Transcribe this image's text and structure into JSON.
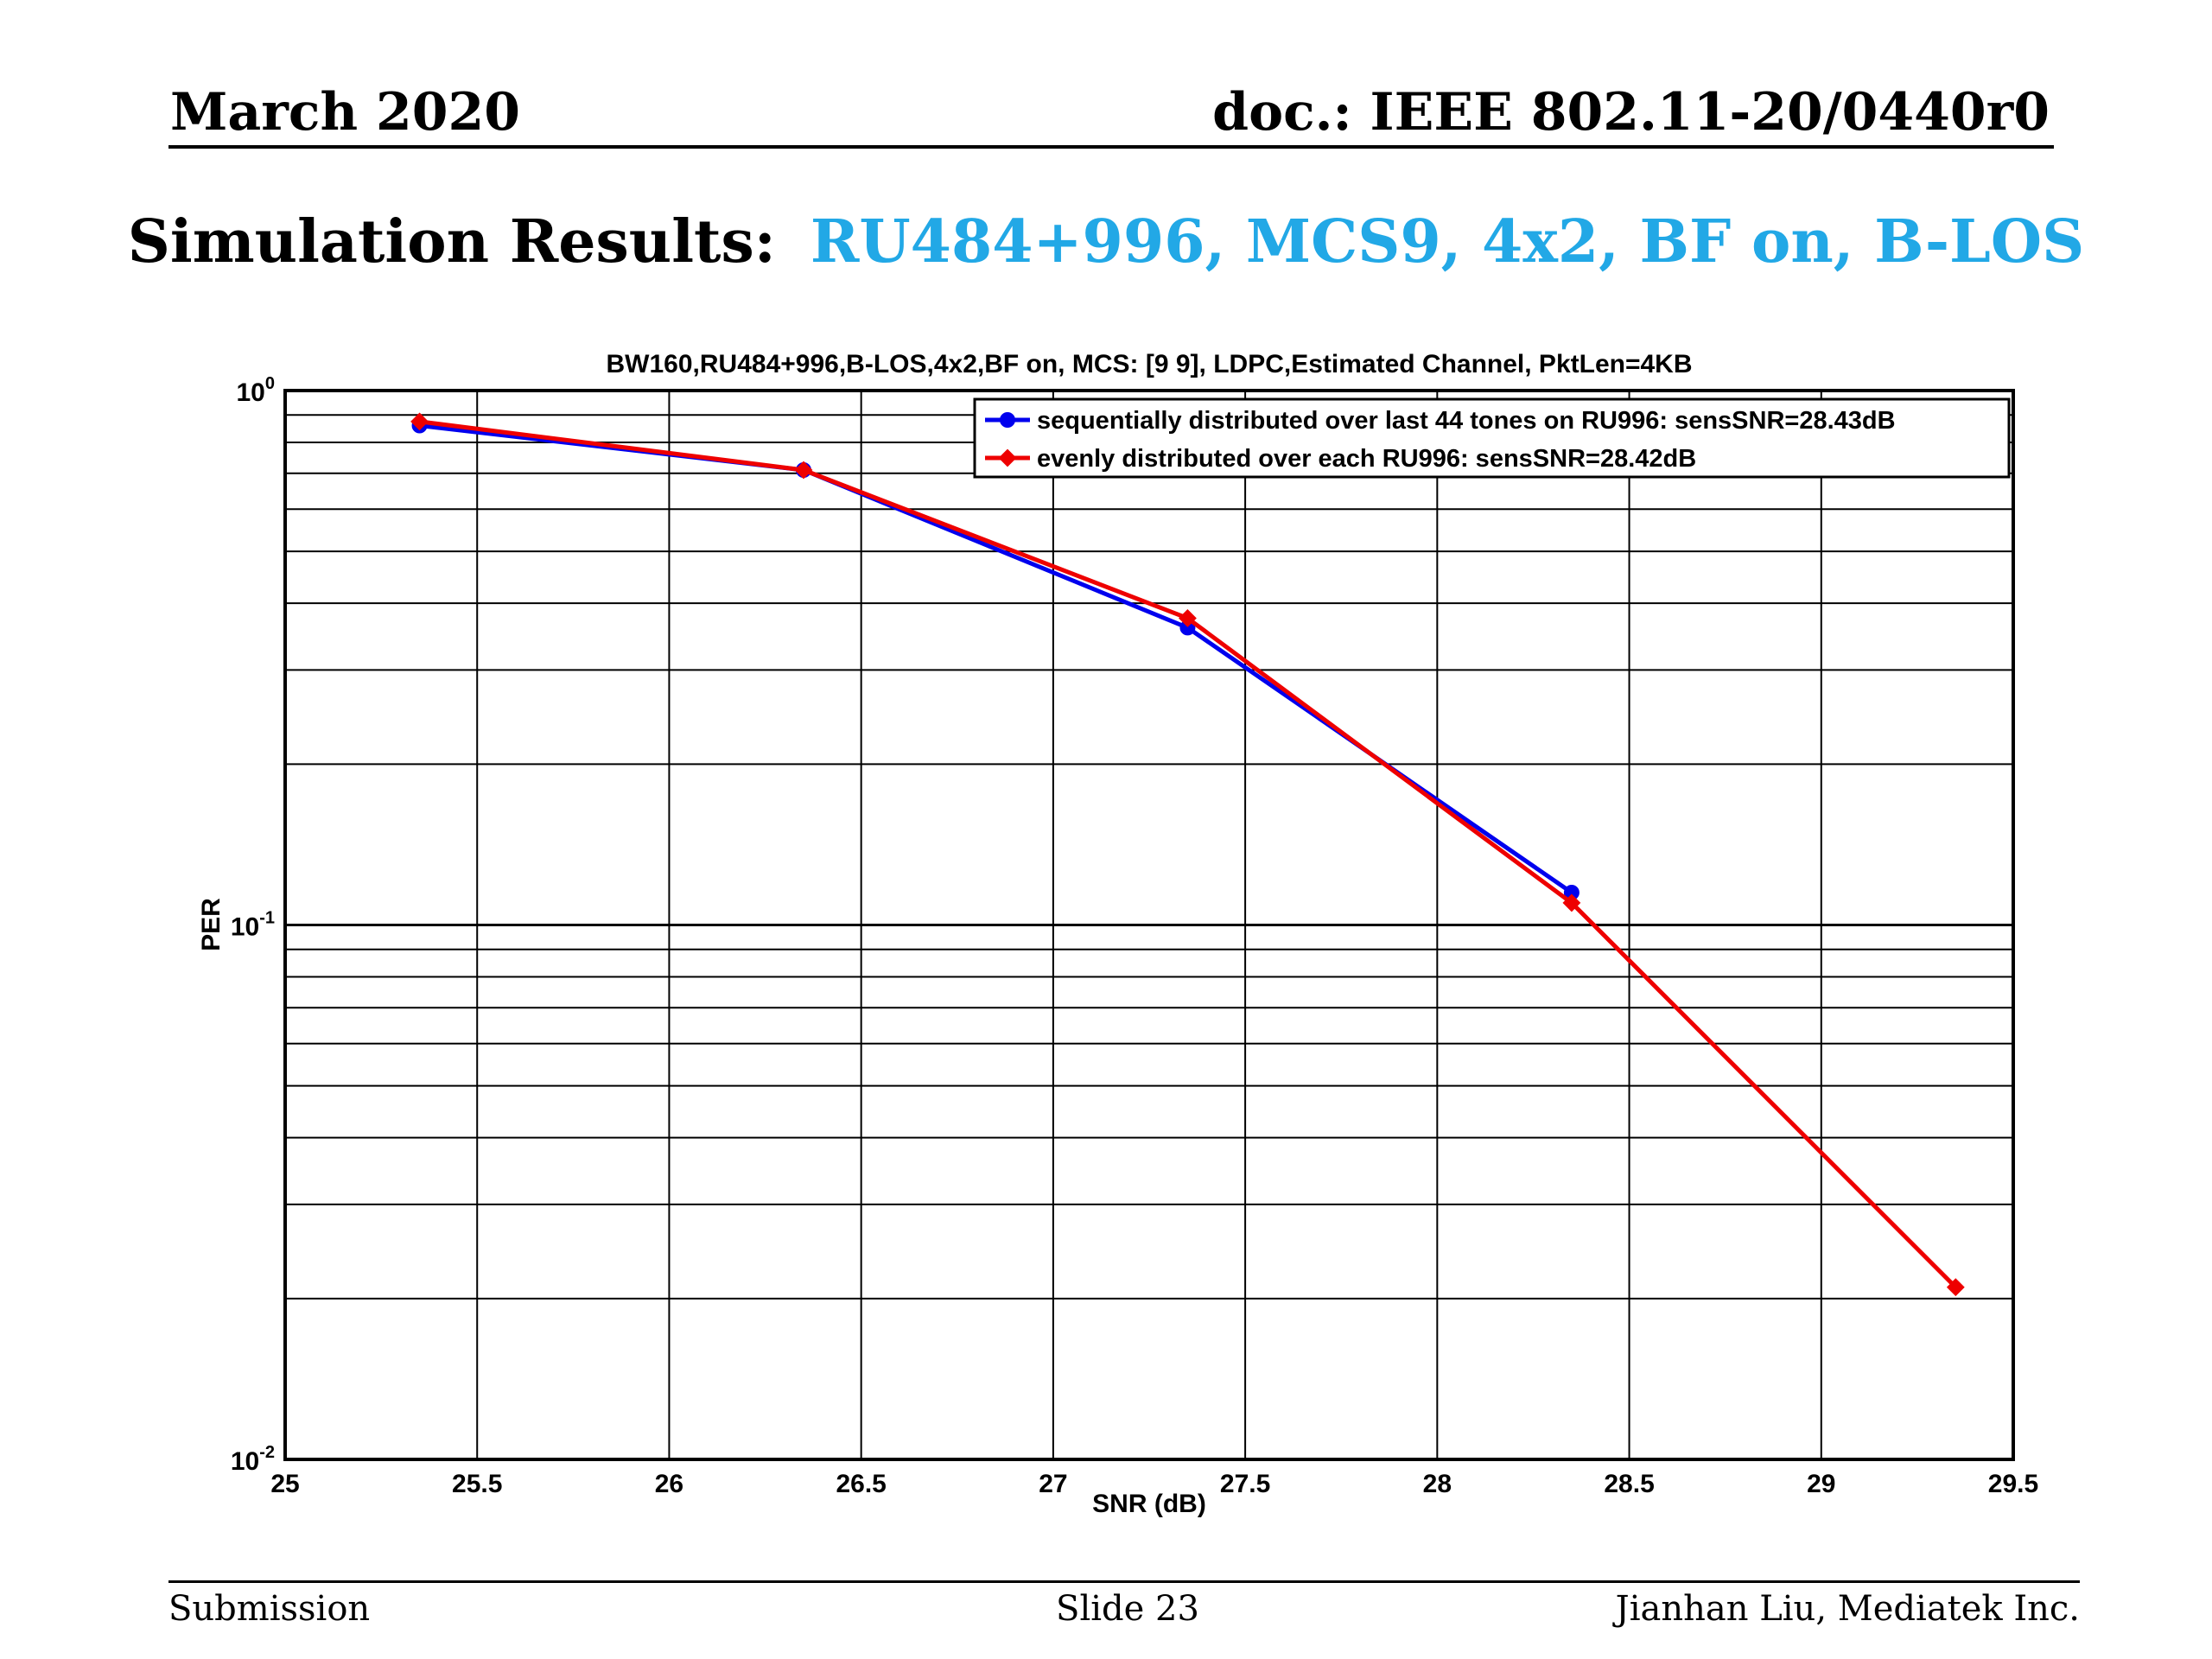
{
  "header": {
    "date": "March 2020",
    "doc_id": "doc.: IEEE 802.11-20/0440r0"
  },
  "slide_title": {
    "lead": "Simulation Results:",
    "accent": "RU484+996, MCS9, 4x2, BF on, B-LOS",
    "accent_color": "#22a8e6"
  },
  "chart_data": {
    "type": "line",
    "title": "BW160,RU484+996,B-LOS,4x2,BF on, MCS: [9  9], LDPC,Estimated Channel, PktLen=4KB",
    "xlabel": "SNR (dB)",
    "ylabel": "PER",
    "xlim": [
      25,
      29.5
    ],
    "ylim": [
      0.01,
      1
    ],
    "yscale": "log",
    "grid": true,
    "legend_position": "top-right",
    "x_ticks": [
      "25",
      "25.5",
      "26",
      "26.5",
      "27",
      "27.5",
      "28",
      "28.5",
      "29",
      "29.5"
    ],
    "y_ticks": [
      {
        "base": "10",
        "exp": "0"
      },
      {
        "base": "10",
        "exp": "-1"
      },
      {
        "base": "10",
        "exp": "-2"
      }
    ],
    "series": [
      {
        "name": "sequentially distributed over last 44 tones on RU996:   sensSNR=28.43dB",
        "color": "#0000ee",
        "marker": "circle",
        "x": [
          25.35,
          26.35,
          27.35,
          28.35
        ],
        "y": [
          0.86,
          0.71,
          0.36,
          0.115
        ]
      },
      {
        "name": "evenly distributed over each RU996:   sensSNR=28.42dB",
        "color": "#ee0000",
        "marker": "diamond",
        "x": [
          25.35,
          26.35,
          27.35,
          28.35,
          29.35
        ],
        "y": [
          0.875,
          0.71,
          0.375,
          0.11,
          0.021
        ]
      }
    ]
  },
  "footer": {
    "left": "Submission",
    "center": "Slide 23",
    "right": "Jianhan Liu, Mediatek Inc."
  }
}
